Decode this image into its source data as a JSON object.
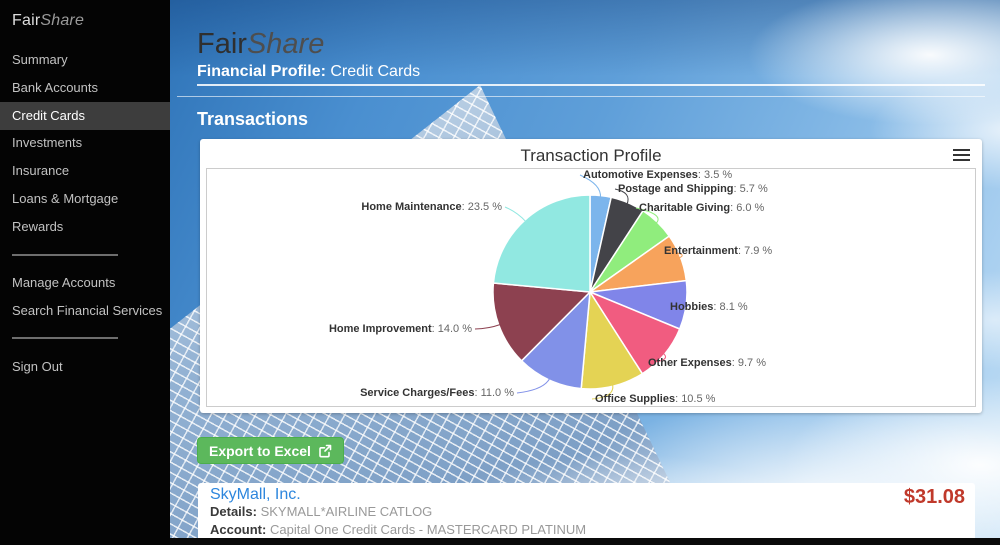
{
  "sidebar": {
    "brand_regular": "Fair",
    "brand_italic": "Share",
    "items": [
      {
        "label": "Summary",
        "active": false
      },
      {
        "label": "Bank Accounts",
        "active": false
      },
      {
        "label": "Credit Cards",
        "active": true
      },
      {
        "label": "Investments",
        "active": false
      },
      {
        "label": "Insurance",
        "active": false
      },
      {
        "label": "Loans & Mortgage",
        "active": false
      },
      {
        "label": "Rewards",
        "active": false
      }
    ],
    "secondary_items": [
      {
        "label": "Manage Accounts"
      },
      {
        "label": "Search Financial Services"
      }
    ],
    "signout_label": "Sign Out"
  },
  "header": {
    "brand_regular": "Fair",
    "brand_italic": "Share",
    "page_title_bold": "Financial Profile:",
    "page_title_rest": " Credit Cards",
    "section_title": "Transactions"
  },
  "chart_card": {
    "menu_icon": "hamburger-menu-icon"
  },
  "chart_data": {
    "type": "pie",
    "title": "Transaction Profile",
    "unit": "%",
    "legend": "none",
    "start_angle_deg": 0,
    "direction": "clockwise",
    "label_format": "name: value %",
    "points": [
      {
        "name": "Automotive Expenses",
        "value": 3.5,
        "color": "#7cb5ec"
      },
      {
        "name": "Postage and Shipping",
        "value": 5.7,
        "color": "#434348"
      },
      {
        "name": "Charitable Giving",
        "value": 6.0,
        "color": "#90ed7d"
      },
      {
        "name": "Entertainment",
        "value": 7.9,
        "color": "#f7a35c"
      },
      {
        "name": "Hobbies",
        "value": 8.1,
        "color": "#8085e9"
      },
      {
        "name": "Other Expenses",
        "value": 9.7,
        "color": "#f15c80"
      },
      {
        "name": "Office Supplies",
        "value": 10.5,
        "color": "#e4d354"
      },
      {
        "name": "Service Charges/Fees",
        "value": 11.0,
        "color": "#8191e8"
      },
      {
        "name": "Home Improvement",
        "value": 14.0,
        "color": "#8d4150"
      },
      {
        "name": "Home Maintenance",
        "value": 23.5,
        "color": "#91e8e1"
      }
    ]
  },
  "export_button": {
    "label": "Export to Excel",
    "icon": "external-link-icon",
    "color": "#5cb85c"
  },
  "transaction": {
    "merchant": "SkyMall, Inc.",
    "merchant_color": "#2d86dd",
    "details_label": "Details:",
    "details_value": "SKYMALL*AIRLINE CATLOG",
    "account_label": "Account:",
    "account_value": "Capital One Credit Cards - MASTERCARD PLATINUM",
    "amount": "$31.08",
    "amount_color": "#c0392b"
  }
}
